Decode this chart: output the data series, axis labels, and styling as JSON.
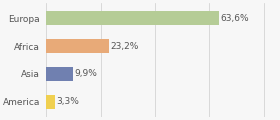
{
  "categories": [
    "Europa",
    "Africa",
    "Asia",
    "America"
  ],
  "values": [
    63.6,
    23.2,
    9.9,
    3.3
  ],
  "labels": [
    "63,6%",
    "23,2%",
    "9,9%",
    "3,3%"
  ],
  "bar_colors": [
    "#b5cc96",
    "#e8aa78",
    "#7080b0",
    "#f0d050"
  ],
  "background_color": "#f7f7f7",
  "xlim": [
    0,
    85
  ],
  "label_fontsize": 6.5,
  "tick_fontsize": 6.5,
  "bar_height": 0.5
}
